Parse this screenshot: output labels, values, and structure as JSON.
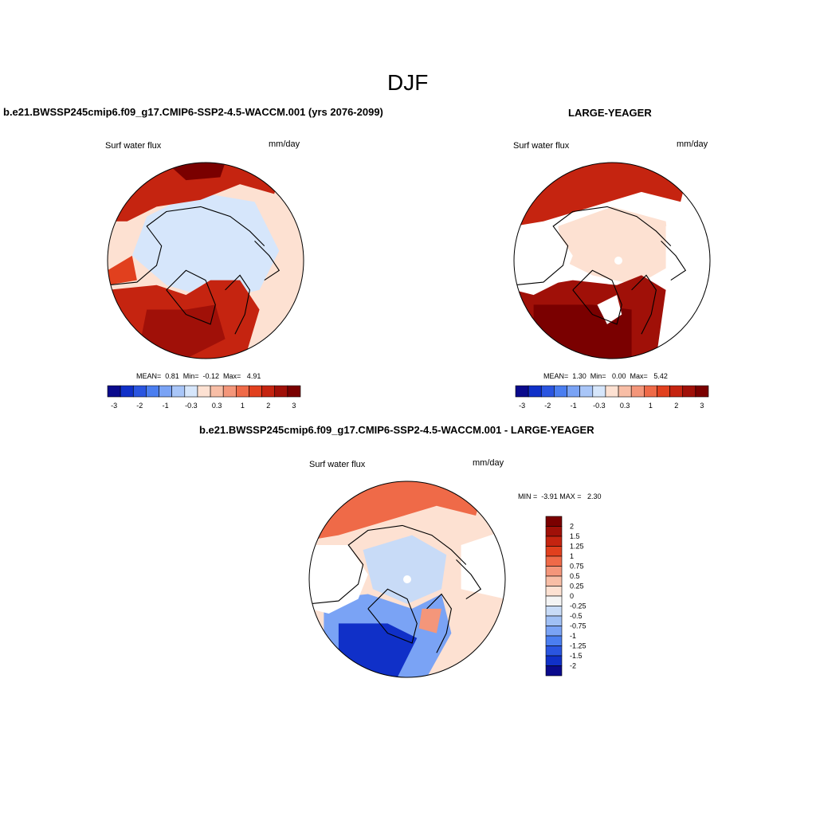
{
  "suptitle": "DJF",
  "panels": [
    {
      "title": "b.e21.BWSSP245cmip6.f09_g17.CMIP6-SSP2-4.5-WACCM.001 (yrs 2076-2099)",
      "variable": "Surf water flux",
      "units": "mm/day",
      "stats_text": "MEAN=  0.81  Min=  -0.12  Max=   4.91"
    },
    {
      "title": "LARGE-YEAGER",
      "variable": "Surf water flux",
      "units": "mm/day",
      "stats_text": "MEAN=  1.30  Min=   0.00  Max=   5.42"
    },
    {
      "title": "b.e21.BWSSP245cmip6.f09_g17.CMIP6-SSP2-4.5-WACCM.001 - LARGE-YEAGER",
      "variable": "Surf water flux",
      "units": "mm/day",
      "stats_text": "MIN =  -3.91 MAX =   2.30"
    }
  ],
  "chart_data": [
    {
      "type": "heatmap",
      "projection": "north polar stereographic",
      "title": "b.e21.BWSSP245cmip6.f09_g17.CMIP6-SSP2-4.5-WACCM.001 (yrs 2076-2099)",
      "variable": "Surf water flux",
      "units": "mm/day",
      "mean": 0.81,
      "min": -0.12,
      "max": 4.91,
      "colorbar": {
        "orientation": "horizontal",
        "levels": [
          -3,
          -2.5,
          -2,
          -1.5,
          -1,
          -0.6,
          -0.3,
          0,
          0.3,
          0.6,
          1,
          1.5,
          2,
          2.5,
          3
        ],
        "tick_labels": [
          "-3",
          "-2",
          "-1",
          "-0.3",
          "0.3",
          "1",
          "2",
          "3"
        ],
        "colors": [
          "#0a0a8c",
          "#1030c8",
          "#2a55e0",
          "#4b7ef0",
          "#7aa3f5",
          "#a9c6f8",
          "#d6e6fb",
          "#fde1d2",
          "#f8bea6",
          "#f4967a",
          "#ef6a48",
          "#e1401e",
          "#c52410",
          "#a01008",
          "#7a0000"
        ]
      }
    },
    {
      "type": "heatmap",
      "projection": "north polar stereographic",
      "title": "LARGE-YEAGER",
      "variable": "Surf water flux",
      "units": "mm/day",
      "mean": 1.3,
      "min": 0.0,
      "max": 5.42,
      "colorbar": {
        "orientation": "horizontal",
        "levels": [
          -3,
          -2.5,
          -2,
          -1.5,
          -1,
          -0.6,
          -0.3,
          0,
          0.3,
          0.6,
          1,
          1.5,
          2,
          2.5,
          3
        ],
        "tick_labels": [
          "-3",
          "-2",
          "-1",
          "-0.3",
          "0.3",
          "1",
          "2",
          "3"
        ],
        "colors": [
          "#0a0a8c",
          "#1030c8",
          "#2a55e0",
          "#4b7ef0",
          "#7aa3f5",
          "#a9c6f8",
          "#d6e6fb",
          "#fde1d2",
          "#f8bea6",
          "#f4967a",
          "#ef6a48",
          "#e1401e",
          "#c52410",
          "#a01008",
          "#7a0000"
        ]
      }
    },
    {
      "type": "heatmap",
      "projection": "north polar stereographic",
      "title": "b.e21.BWSSP245cmip6.f09_g17.CMIP6-SSP2-4.5-WACCM.001 - LARGE-YEAGER",
      "variable": "Surf water flux",
      "units": "mm/day",
      "min": -3.91,
      "max": 2.3,
      "colorbar": {
        "orientation": "vertical",
        "tick_labels": [
          "2",
          "1.5",
          "1.25",
          "1",
          "0.75",
          "0.5",
          "0.25",
          "0",
          "-0.25",
          "-0.5",
          "-0.75",
          "-1",
          "-1.25",
          "-1.5",
          "-2"
        ],
        "colors": [
          "#7a0000",
          "#a01008",
          "#c52410",
          "#e1401e",
          "#ef6a48",
          "#f4967a",
          "#f8bea6",
          "#fde1d2",
          "#f4f4f4",
          "#c8dbf7",
          "#a0c0f5",
          "#7aa3f5",
          "#4b7ef0",
          "#2a55e0",
          "#1030c8",
          "#0a0a8c"
        ]
      }
    }
  ]
}
